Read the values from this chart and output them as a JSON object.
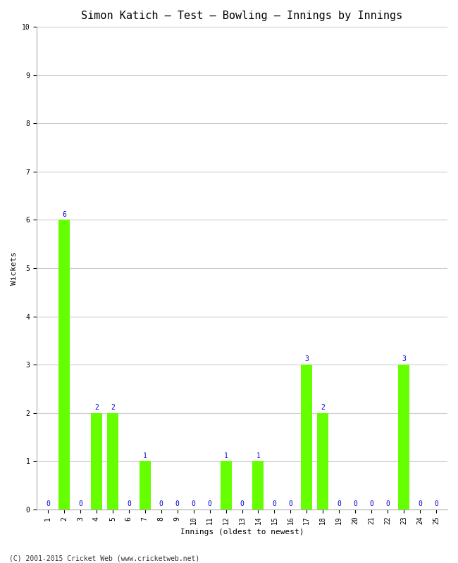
{
  "title": "Simon Katich – Test – Bowling – Innings by Innings",
  "xlabel": "Innings (oldest to newest)",
  "ylabel": "Wickets",
  "innings": [
    1,
    2,
    3,
    4,
    5,
    6,
    7,
    8,
    9,
    10,
    11,
    12,
    13,
    14,
    15,
    16,
    17,
    18,
    19,
    20,
    21,
    22,
    23,
    24,
    25
  ],
  "wickets": [
    0,
    6,
    0,
    2,
    2,
    0,
    1,
    0,
    0,
    0,
    0,
    1,
    0,
    1,
    0,
    0,
    3,
    2,
    0,
    0,
    0,
    0,
    3,
    0,
    0
  ],
  "bar_color": "#66ff00",
  "label_color": "#0000cc",
  "ylim": [
    0,
    10
  ],
  "yticks": [
    0,
    1,
    2,
    3,
    4,
    5,
    6,
    7,
    8,
    9,
    10
  ],
  "grid_color": "#cccccc",
  "bg_color": "#ffffff",
  "footer": "(C) 2001-2015 Cricket Web (www.cricketweb.net)",
  "title_fontsize": 11,
  "label_fontsize": 8,
  "tick_fontsize": 7,
  "bar_label_fontsize": 7,
  "footer_fontsize": 7
}
